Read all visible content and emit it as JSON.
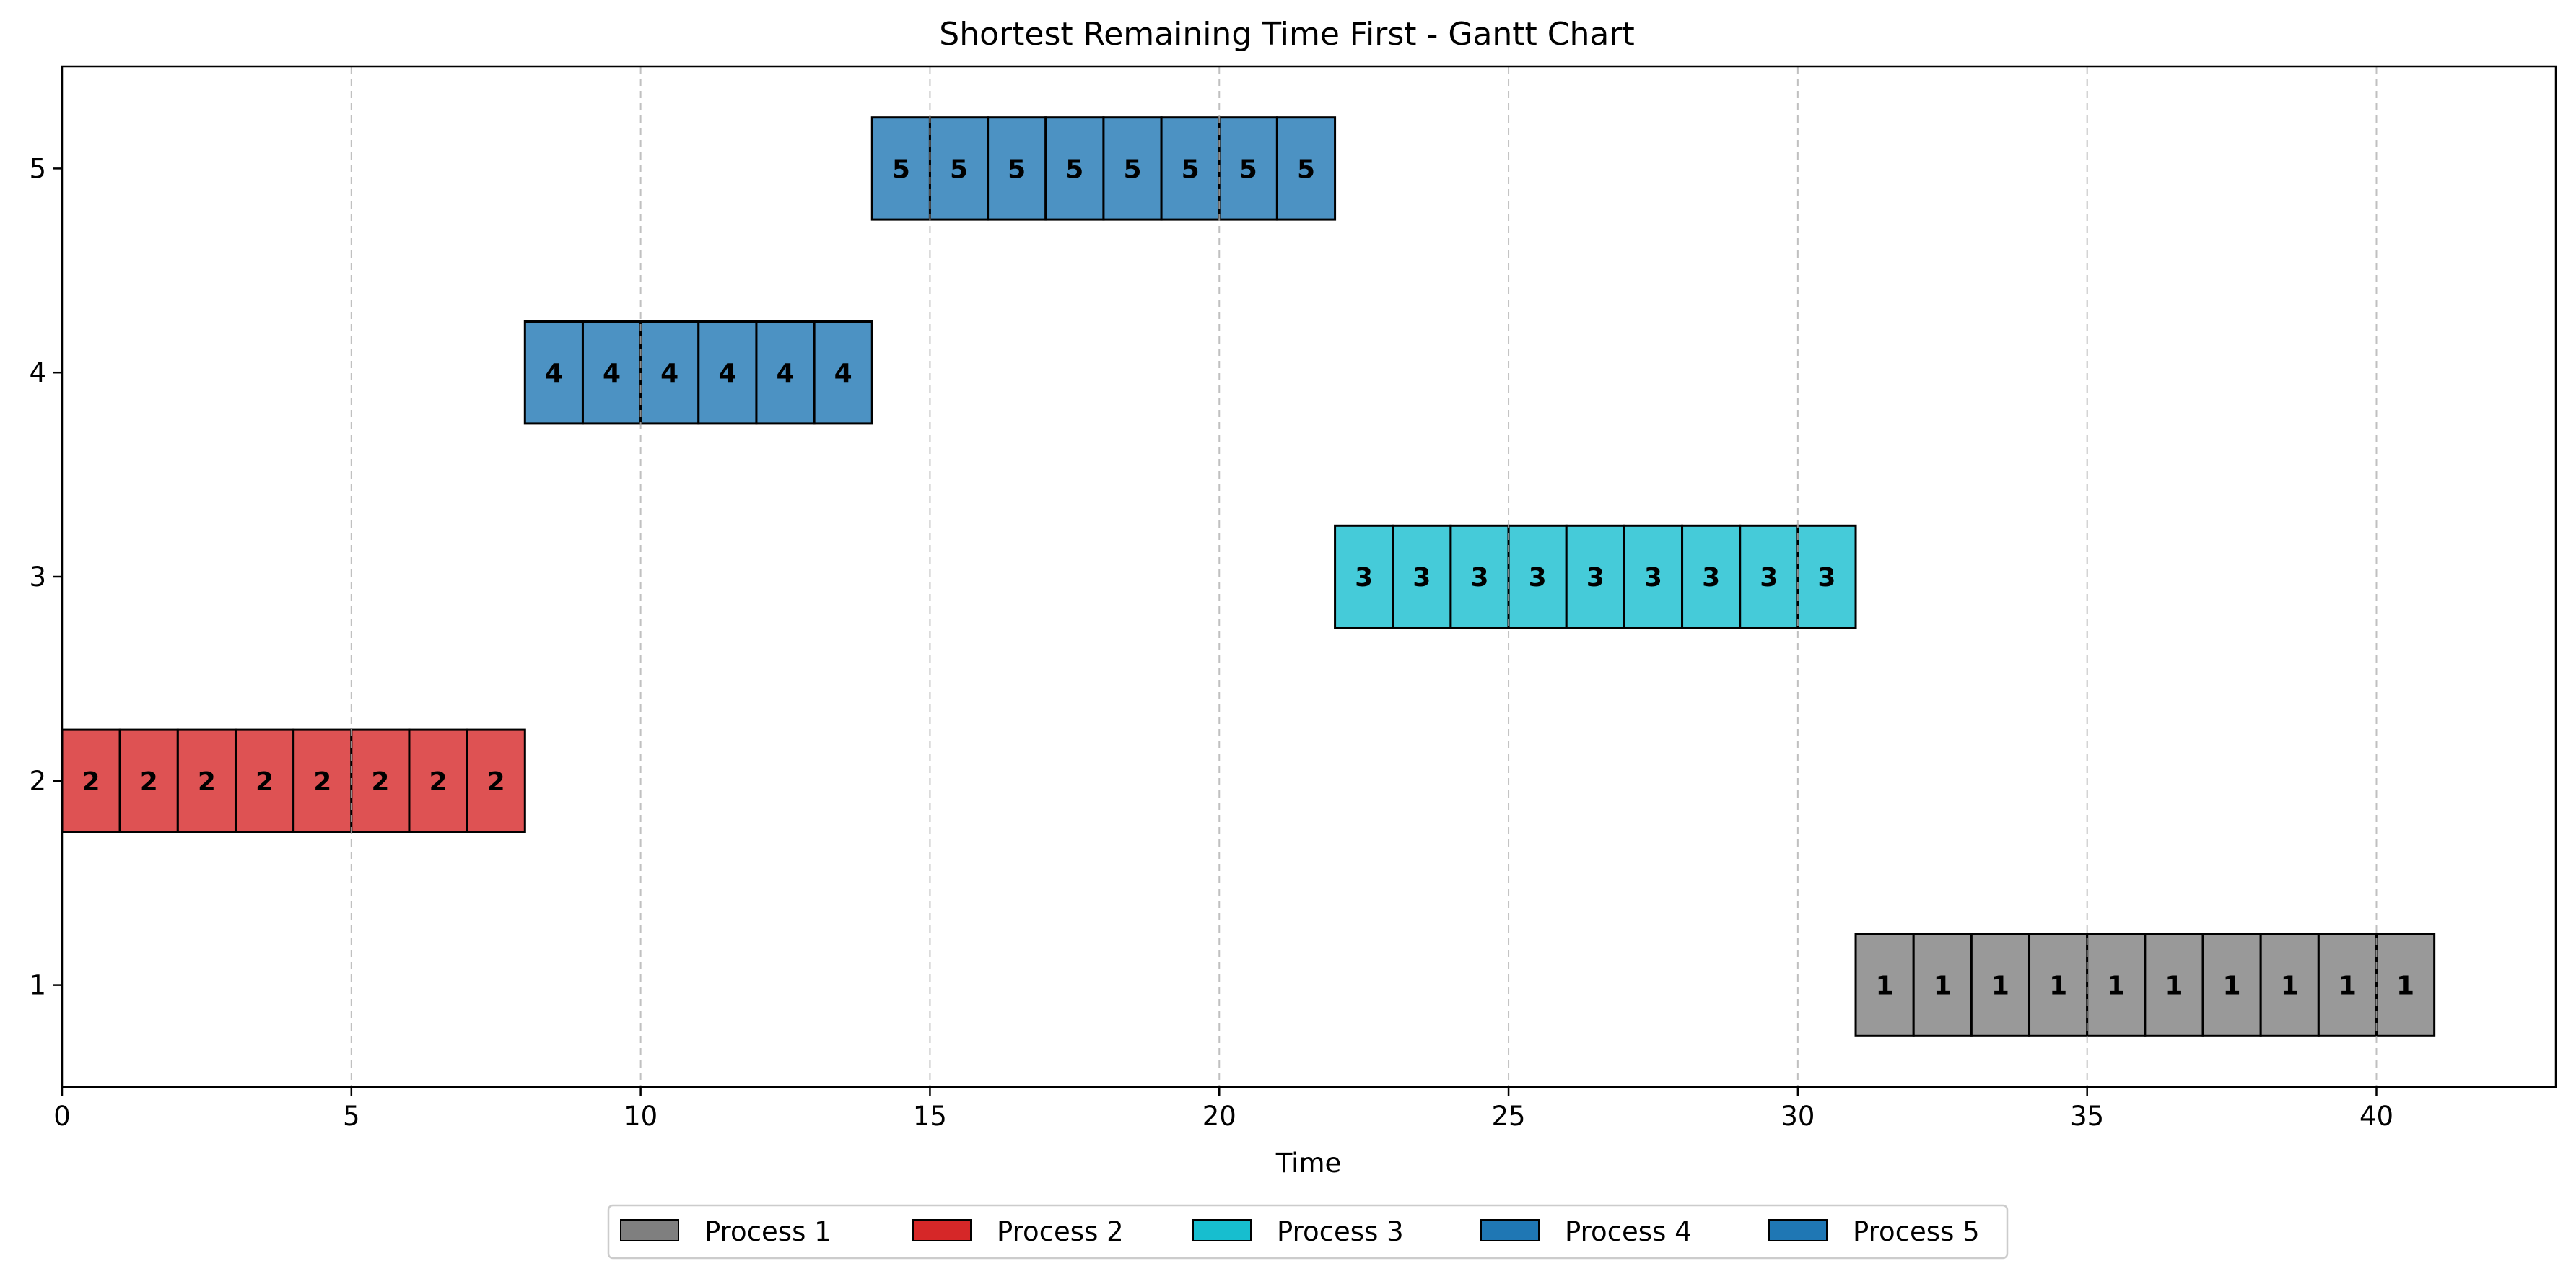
{
  "chart_data": {
    "type": "bar",
    "orientation": "horizontal-gantt",
    "title": "Shortest Remaining Time First - Gantt Chart",
    "xlabel": "Time",
    "ylabel": "",
    "xlim": [
      0,
      43.1
    ],
    "ylim": [
      0.5,
      5.5
    ],
    "xticks": [
      0,
      5,
      10,
      15,
      20,
      25,
      30,
      35,
      40
    ],
    "yticks": [
      1,
      2,
      3,
      4,
      5
    ],
    "grid": "x-dashed",
    "legend": {
      "placement": "bottom-center",
      "ncol": 5
    },
    "series": [
      {
        "name": "Process 1",
        "y": 1,
        "color": "#7f7f7f",
        "segments": [
          [
            31,
            32
          ],
          [
            32,
            33
          ],
          [
            33,
            34
          ],
          [
            34,
            35
          ],
          [
            35,
            36
          ],
          [
            36,
            37
          ],
          [
            37,
            38
          ],
          [
            38,
            39
          ],
          [
            39,
            40
          ],
          [
            40,
            41
          ]
        ]
      },
      {
        "name": "Process 2",
        "y": 2,
        "color": "#d62728",
        "segments": [
          [
            0,
            1
          ],
          [
            1,
            2
          ],
          [
            2,
            3
          ],
          [
            3,
            4
          ],
          [
            4,
            5
          ],
          [
            5,
            6
          ],
          [
            6,
            7
          ],
          [
            7,
            8
          ]
        ]
      },
      {
        "name": "Process 3",
        "y": 3,
        "color": "#17becf",
        "segments": [
          [
            22,
            23
          ],
          [
            23,
            24
          ],
          [
            24,
            25
          ],
          [
            25,
            26
          ],
          [
            26,
            27
          ],
          [
            27,
            28
          ],
          [
            28,
            29
          ],
          [
            29,
            30
          ],
          [
            30,
            31
          ]
        ]
      },
      {
        "name": "Process 4",
        "y": 4,
        "color": "#1f77b4",
        "segments": [
          [
            8,
            9
          ],
          [
            9,
            10
          ],
          [
            10,
            11
          ],
          [
            11,
            12
          ],
          [
            12,
            13
          ],
          [
            13,
            14
          ]
        ]
      },
      {
        "name": "Process 5",
        "y": 5,
        "color": "#1f77b4",
        "segments": [
          [
            14,
            15
          ],
          [
            15,
            16
          ],
          [
            16,
            17
          ],
          [
            17,
            18
          ],
          [
            18,
            19
          ],
          [
            19,
            20
          ],
          [
            20,
            21
          ],
          [
            21,
            22
          ]
        ]
      }
    ]
  }
}
